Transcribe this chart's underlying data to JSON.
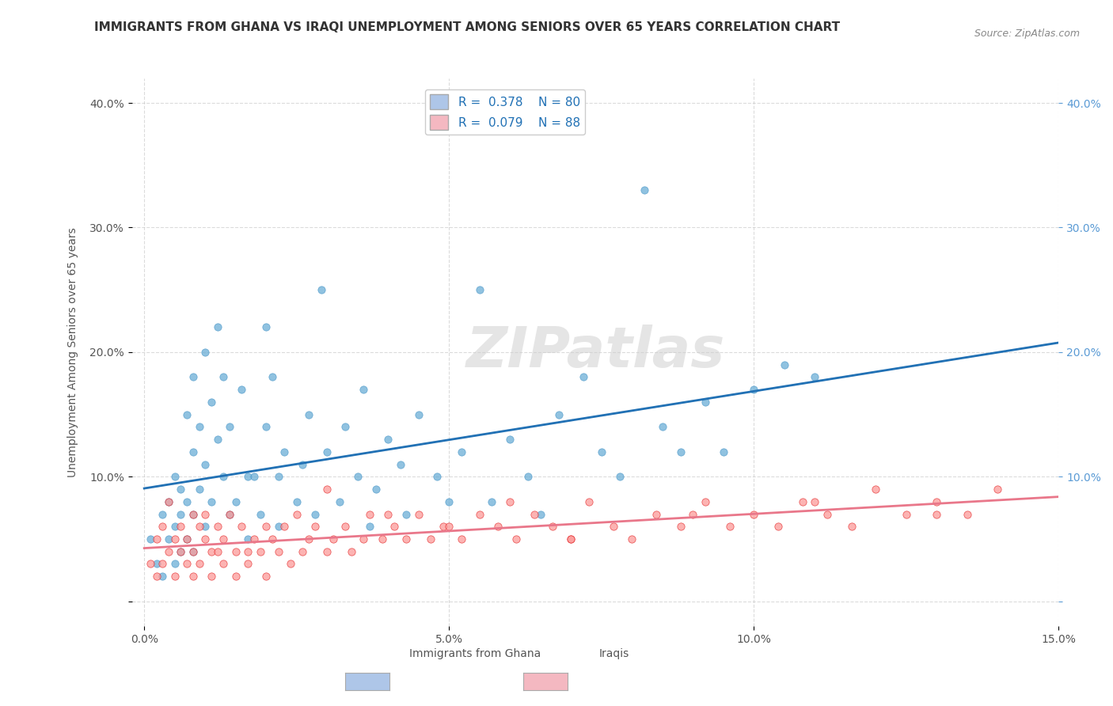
{
  "title": "IMMIGRANTS FROM GHANA VS IRAQI UNEMPLOYMENT AMONG SENIORS OVER 65 YEARS CORRELATION CHART",
  "source": "Source: ZipAtlas.com",
  "ylabel": "Unemployment Among Seniors over 65 years",
  "xlabel": "",
  "xlim": [
    0.0,
    0.15
  ],
  "ylim": [
    -0.02,
    0.42
  ],
  "yticks": [
    0.0,
    0.1,
    0.2,
    0.3,
    0.4
  ],
  "ytick_labels": [
    "",
    "10.0%",
    "20.0%",
    "30.0%",
    "40.0%"
  ],
  "xticks": [
    0.0,
    0.05,
    0.1,
    0.15
  ],
  "xtick_labels": [
    "0.0%",
    "5.0%",
    "10.0%",
    "15.0%"
  ],
  "ghana_R": 0.378,
  "ghana_N": 80,
  "iraqi_R": 0.079,
  "iraqi_N": 88,
  "ghana_color": "#6baed6",
  "ghana_edge": "#4292c6",
  "iraqi_color": "#fb9a99",
  "iraqi_edge": "#e31a1c",
  "ghana_line_color": "#2171b5",
  "iraqi_line_color": "#e9778a",
  "watermark": "ZIPatlas",
  "background_color": "#ffffff",
  "legend_box_ghana": "#aec6e8",
  "legend_box_iraqi": "#f4b8c1",
  "ghana_scatter_x": [
    0.001,
    0.002,
    0.003,
    0.003,
    0.004,
    0.004,
    0.005,
    0.005,
    0.005,
    0.006,
    0.006,
    0.006,
    0.007,
    0.007,
    0.007,
    0.008,
    0.008,
    0.008,
    0.008,
    0.009,
    0.009,
    0.01,
    0.01,
    0.01,
    0.011,
    0.011,
    0.012,
    0.012,
    0.013,
    0.013,
    0.014,
    0.014,
    0.015,
    0.016,
    0.017,
    0.017,
    0.018,
    0.019,
    0.02,
    0.02,
    0.021,
    0.022,
    0.022,
    0.023,
    0.025,
    0.026,
    0.027,
    0.028,
    0.029,
    0.03,
    0.032,
    0.033,
    0.035,
    0.036,
    0.037,
    0.038,
    0.04,
    0.042,
    0.043,
    0.045,
    0.048,
    0.05,
    0.052,
    0.055,
    0.057,
    0.06,
    0.063,
    0.065,
    0.068,
    0.072,
    0.075,
    0.078,
    0.082,
    0.085,
    0.088,
    0.092,
    0.095,
    0.1,
    0.105,
    0.11
  ],
  "ghana_scatter_y": [
    0.05,
    0.03,
    0.07,
    0.02,
    0.08,
    0.05,
    0.1,
    0.06,
    0.03,
    0.09,
    0.07,
    0.04,
    0.15,
    0.08,
    0.05,
    0.18,
    0.12,
    0.07,
    0.04,
    0.14,
    0.09,
    0.2,
    0.11,
    0.06,
    0.16,
    0.08,
    0.22,
    0.13,
    0.18,
    0.1,
    0.14,
    0.07,
    0.08,
    0.17,
    0.1,
    0.05,
    0.1,
    0.07,
    0.22,
    0.14,
    0.18,
    0.1,
    0.06,
    0.12,
    0.08,
    0.11,
    0.15,
    0.07,
    0.25,
    0.12,
    0.08,
    0.14,
    0.1,
    0.17,
    0.06,
    0.09,
    0.13,
    0.11,
    0.07,
    0.15,
    0.1,
    0.08,
    0.12,
    0.25,
    0.08,
    0.13,
    0.1,
    0.07,
    0.15,
    0.18,
    0.12,
    0.1,
    0.33,
    0.14,
    0.12,
    0.16,
    0.12,
    0.17,
    0.19,
    0.18
  ],
  "iraqi_scatter_x": [
    0.001,
    0.002,
    0.002,
    0.003,
    0.003,
    0.004,
    0.004,
    0.005,
    0.005,
    0.006,
    0.006,
    0.007,
    0.007,
    0.008,
    0.008,
    0.008,
    0.009,
    0.009,
    0.01,
    0.01,
    0.011,
    0.011,
    0.012,
    0.012,
    0.013,
    0.013,
    0.014,
    0.015,
    0.015,
    0.016,
    0.017,
    0.017,
    0.018,
    0.019,
    0.02,
    0.02,
    0.021,
    0.022,
    0.023,
    0.024,
    0.025,
    0.026,
    0.027,
    0.028,
    0.03,
    0.031,
    0.033,
    0.034,
    0.036,
    0.037,
    0.039,
    0.041,
    0.043,
    0.045,
    0.047,
    0.049,
    0.052,
    0.055,
    0.058,
    0.061,
    0.064,
    0.067,
    0.07,
    0.073,
    0.077,
    0.08,
    0.084,
    0.088,
    0.092,
    0.096,
    0.1,
    0.104,
    0.108,
    0.112,
    0.116,
    0.12,
    0.125,
    0.13,
    0.135,
    0.14,
    0.03,
    0.04,
    0.05,
    0.06,
    0.07,
    0.09,
    0.11,
    0.13
  ],
  "iraqi_scatter_y": [
    0.03,
    0.05,
    0.02,
    0.06,
    0.03,
    0.08,
    0.04,
    0.05,
    0.02,
    0.04,
    0.06,
    0.03,
    0.05,
    0.07,
    0.02,
    0.04,
    0.06,
    0.03,
    0.05,
    0.07,
    0.04,
    0.02,
    0.06,
    0.04,
    0.05,
    0.03,
    0.07,
    0.04,
    0.02,
    0.06,
    0.04,
    0.03,
    0.05,
    0.04,
    0.06,
    0.02,
    0.05,
    0.04,
    0.06,
    0.03,
    0.07,
    0.04,
    0.05,
    0.06,
    0.04,
    0.05,
    0.06,
    0.04,
    0.05,
    0.07,
    0.05,
    0.06,
    0.05,
    0.07,
    0.05,
    0.06,
    0.05,
    0.07,
    0.06,
    0.05,
    0.07,
    0.06,
    0.05,
    0.08,
    0.06,
    0.05,
    0.07,
    0.06,
    0.08,
    0.06,
    0.07,
    0.06,
    0.08,
    0.07,
    0.06,
    0.09,
    0.07,
    0.08,
    0.07,
    0.09,
    0.09,
    0.07,
    0.06,
    0.08,
    0.05,
    0.07,
    0.08,
    0.07
  ],
  "title_fontsize": 11,
  "axis_fontsize": 10,
  "tick_fontsize": 10
}
